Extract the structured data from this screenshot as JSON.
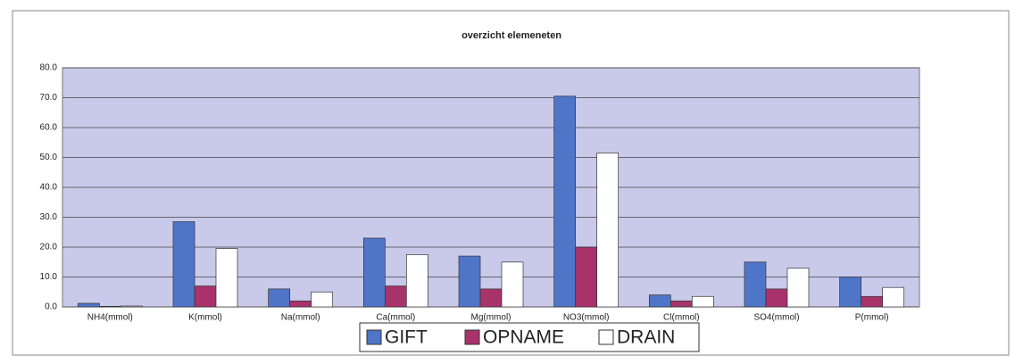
{
  "chart_data": {
    "type": "bar",
    "title": "overzicht elemeneten",
    "categories": [
      "NH4(mmol)",
      "K(mmol)",
      "Na(mmol)",
      "Ca(mmol)",
      "Mg(mmol)",
      "NO3(mmol)",
      "Cl(mmol)",
      "SO4(mmol)",
      "P(mmol)"
    ],
    "series": [
      {
        "name": "GIFT",
        "color": "#4f75c8",
        "values": [
          1.2,
          28.5,
          6.0,
          23.0,
          17.0,
          70.5,
          4.0,
          15.0,
          10.0
        ]
      },
      {
        "name": "OPNAME",
        "color": "#a8336b",
        "values": [
          0.2,
          7.0,
          2.0,
          7.0,
          6.0,
          20.0,
          2.0,
          6.0,
          3.5
        ]
      },
      {
        "name": "DRAIN",
        "color": "#ffffff",
        "values": [
          0.3,
          19.5,
          5.0,
          17.5,
          15.0,
          51.5,
          3.5,
          13.0,
          6.5
        ]
      }
    ],
    "ylim": [
      0,
      80
    ],
    "yticks": [
      {
        "value": 0,
        "label": "0.0"
      },
      {
        "value": 10,
        "label": "10.0"
      },
      {
        "value": 20,
        "label": "20.0"
      },
      {
        "value": 30,
        "label": "30.0"
      },
      {
        "value": 40,
        "label": "40.0"
      },
      {
        "value": 50,
        "label": "50.0"
      },
      {
        "value": 60,
        "label": "60.0"
      },
      {
        "value": 70,
        "label": "70.0"
      },
      {
        "value": 80,
        "label": "80.0"
      }
    ],
    "grid": true,
    "plot_background": "#c9c9ea",
    "legend": "bottom"
  }
}
